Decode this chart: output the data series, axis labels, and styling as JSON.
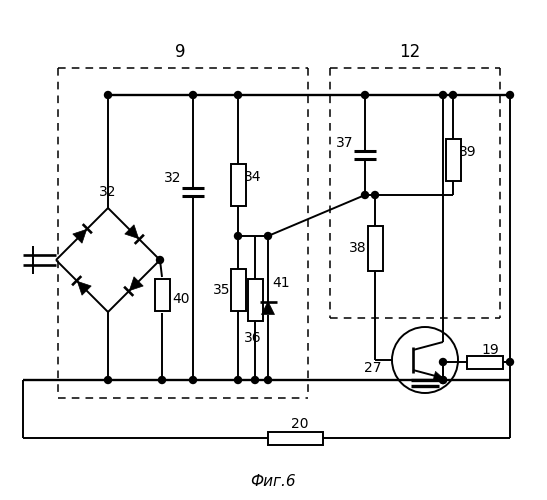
{
  "title": "Фиг.6",
  "label_9": "9",
  "label_12": "12",
  "labels": {
    "32_bridge": "32",
    "32_cap": "32",
    "34": "34",
    "35": "35",
    "36": "36",
    "37": "37",
    "38": "38",
    "39": "39",
    "40": "40",
    "41": "41",
    "27": "27",
    "19": "19",
    "20": "20"
  },
  "bg_color": "white",
  "lw": 1.4
}
